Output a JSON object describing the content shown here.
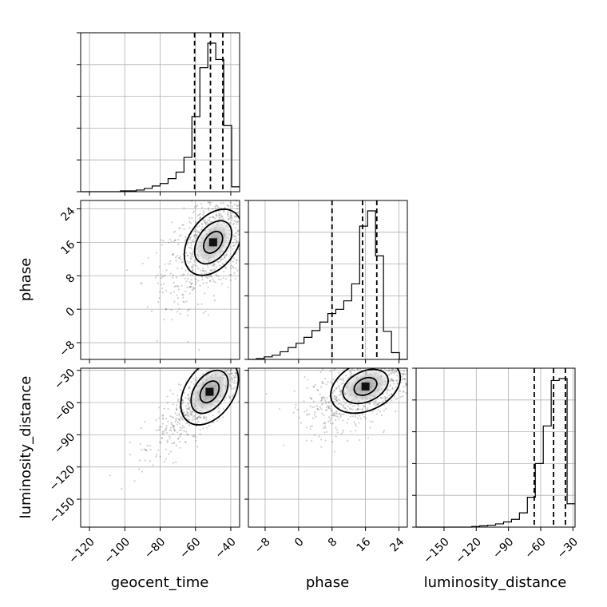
{
  "chart_data": {
    "type": "corner",
    "parameters": [
      "geocent_time",
      "phase",
      "luminosity_distance"
    ],
    "axis_labels": {
      "geocent_time": "geocent_time",
      "phase": "phase",
      "luminosity_distance": "luminosity_distance"
    },
    "ranges": {
      "geocent_time": [
        -125,
        -35
      ],
      "phase": [
        -12,
        26
      ],
      "luminosity_distance": [
        -176,
        -28
      ]
    },
    "ticks": {
      "geocent_time": [
        -120,
        -100,
        -80,
        -60,
        -40
      ],
      "phase": [
        -8,
        0,
        8,
        16,
        24
      ],
      "luminosity_distance": [
        -150,
        -120,
        -90,
        -60,
        -30
      ]
    },
    "tick_labels": {
      "geocent_time": [
        "−120",
        "−100",
        "−80",
        "−60",
        "−40"
      ],
      "phase": [
        "−8",
        "0",
        "8",
        "16",
        "24"
      ],
      "luminosity_distance": [
        "−150",
        "−120",
        "−90",
        "−60",
        "−30"
      ]
    },
    "quantiles": {
      "geocent_time": [
        -60.5,
        -51.5,
        -44.5
      ],
      "phase": [
        8,
        15.3,
        18.7
      ],
      "luminosity_distance": [
        -66,
        -48,
        -37
      ]
    },
    "histograms": {
      "geocent_time": {
        "edges": [
          -125,
          -120.5,
          -116,
          -111.5,
          -107,
          -102.5,
          -98,
          -93.5,
          -89,
          -84.5,
          -80,
          -75.5,
          -71,
          -66.5,
          -62,
          -57.5,
          -53,
          -48.5,
          -44,
          -39.5,
          -35
        ],
        "counts": [
          0,
          0,
          0,
          0,
          0,
          1,
          1,
          2,
          4,
          7,
          10,
          16,
          24,
          42,
          92,
          152,
          182,
          162,
          81,
          6
        ]
      },
      "phase": {
        "edges": [
          -12,
          -10.1,
          -8.2,
          -6.3,
          -4.4,
          -2.5,
          -0.6,
          1.3,
          3.2,
          5.1,
          7,
          8.9,
          10.8,
          12.7,
          14.6,
          16.5,
          18.4,
          20.3,
          22.2,
          24.1,
          26
        ],
        "counts": [
          0,
          1,
          3,
          5,
          9,
          14,
          19,
          26,
          34,
          44,
          54,
          59,
          69,
          89,
          157,
          175,
          122,
          33,
          8,
          0
        ]
      },
      "luminosity_distance": {
        "edges": [
          -176,
          -168.6,
          -161.2,
          -153.8,
          -146.4,
          -139,
          -131.6,
          -124.2,
          -116.8,
          -109.4,
          -102,
          -94.6,
          -87.2,
          -79.8,
          -72.4,
          -65,
          -57.6,
          -50.2,
          -42.8,
          -35.4,
          -28
        ],
        "counts": [
          0,
          0,
          0,
          0,
          0,
          0,
          0,
          1,
          2,
          3,
          5,
          8,
          12,
          22,
          46,
          98,
          156,
          226,
          229,
          36
        ]
      }
    },
    "grid": true
  }
}
